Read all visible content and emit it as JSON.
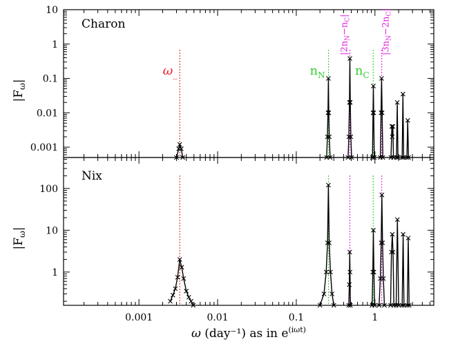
{
  "chart_data": [
    {
      "type": "line",
      "panel_label": "Charon",
      "ylabel": "|F_ω|",
      "xscale": "log",
      "yscale": "log",
      "xlim": [
        0.00011,
        5.6
      ],
      "ylim": [
        0.0005,
        10
      ],
      "ytick_values": [
        0.001,
        0.01,
        0.1,
        1,
        10
      ],
      "ytick_labels": [
        "0.001",
        "0.01",
        "0.1",
        "1",
        "10"
      ],
      "vlines": [
        {
          "x": 0.0033,
          "color": "#e8202a",
          "label": "ω_"
        },
        {
          "x": 0.257,
          "color": "#33cc33",
          "label": "n_N"
        },
        {
          "x": 0.95,
          "color": "#33cc33",
          "label": "n_C"
        },
        {
          "x": 0.48,
          "color": "#dd22dd",
          "label": "|2n_N − n_C|"
        },
        {
          "x": 1.22,
          "color": "#dd22dd",
          "label": "|3n_N − 2n_C|"
        }
      ],
      "series": [
        {
          "values": [
            [
              0.003,
              0.0005
            ],
            [
              0.0032,
              0.0009
            ],
            [
              0.0033,
              0.0012
            ],
            [
              0.00345,
              0.0009
            ],
            [
              0.0036,
              0.0005
            ]
          ]
        },
        {
          "values": [
            [
              0.243,
              0.0005
            ],
            [
              0.249,
              0.002
            ],
            [
              0.253,
              0.01
            ],
            [
              0.256,
              0.1
            ],
            [
              0.259,
              0.01
            ],
            [
              0.263,
              0.002
            ],
            [
              0.269,
              0.0005
            ]
          ]
        },
        {
          "values": [
            [
              0.455,
              0.0005
            ],
            [
              0.466,
              0.002
            ],
            [
              0.474,
              0.02
            ],
            [
              0.48,
              0.38
            ],
            [
              0.486,
              0.02
            ],
            [
              0.494,
              0.002
            ],
            [
              0.505,
              0.0005
            ]
          ]
        },
        {
          "values": [
            [
              0.93,
              0.0005
            ],
            [
              0.945,
              0.01
            ],
            [
              0.955,
              0.06
            ],
            [
              0.965,
              0.01
            ],
            [
              0.98,
              0.0005
            ]
          ]
        },
        {
          "values": [
            [
              1.17,
              0.0005
            ],
            [
              1.195,
              0.01
            ],
            [
              1.215,
              0.1
            ],
            [
              1.235,
              0.01
            ],
            [
              1.26,
              0.0005
            ]
          ]
        },
        {
          "values": [
            [
              1.6,
              0.0005
            ],
            [
              1.64,
              0.004
            ],
            [
              1.66,
              0.002
            ],
            [
              1.69,
              0.004
            ],
            [
              1.72,
              0.0005
            ]
          ]
        },
        {
          "values": [
            [
              1.88,
              0.0005
            ],
            [
              1.92,
              0.02
            ],
            [
              1.96,
              0.0005
            ]
          ]
        },
        {
          "values": [
            [
              2.22,
              0.0005
            ],
            [
              2.27,
              0.035
            ],
            [
              2.32,
              0.0005
            ]
          ]
        },
        {
          "values": [
            [
              2.55,
              0.0005
            ],
            [
              2.61,
              0.006
            ],
            [
              2.67,
              0.0005
            ]
          ]
        }
      ]
    },
    {
      "type": "line",
      "panel_label": "Nix",
      "ylabel": "|F_ω|",
      "xlabel": "ω (day⁻¹)   as in e^(iωt)",
      "xscale": "log",
      "yscale": "log",
      "xlim": [
        0.00011,
        5.6
      ],
      "ylim": [
        0.16,
        550
      ],
      "ytick_values": [
        1,
        10,
        100
      ],
      "ytick_labels": [
        "1",
        "10",
        "100"
      ],
      "xtick_values": [
        0.001,
        0.01,
        0.1,
        1
      ],
      "xtick_labels": [
        "0.001",
        "0.01",
        "0.1",
        "1"
      ],
      "vlines": [
        {
          "x": 0.0033,
          "color": "#e8202a"
        },
        {
          "x": 0.257,
          "color": "#33cc33"
        },
        {
          "x": 0.95,
          "color": "#33cc33"
        },
        {
          "x": 0.48,
          "color": "#dd22dd"
        },
        {
          "x": 1.22,
          "color": "#dd22dd"
        }
      ],
      "series": [
        {
          "values": [
            [
              0.0025,
              0.2
            ],
            [
              0.0027,
              0.28
            ],
            [
              0.0029,
              0.4
            ],
            [
              0.0031,
              0.75
            ],
            [
              0.0033,
              2.0
            ],
            [
              0.0035,
              1.3
            ],
            [
              0.0037,
              0.7
            ],
            [
              0.004,
              0.35
            ],
            [
              0.0043,
              0.25
            ],
            [
              0.0046,
              0.2
            ],
            [
              0.0049,
              0.16
            ]
          ]
        },
        {
          "values": [
            [
              0.2,
              0.16
            ],
            [
              0.225,
              0.3
            ],
            [
              0.24,
              1.0
            ],
            [
              0.25,
              5.0
            ],
            [
              0.256,
              120
            ],
            [
              0.262,
              5.0
            ],
            [
              0.272,
              1.0
            ],
            [
              0.285,
              0.3
            ],
            [
              0.3,
              0.16
            ]
          ]
        },
        {
          "values": [
            [
              0.465,
              0.16
            ],
            [
              0.472,
              0.5
            ],
            [
              0.478,
              3.0
            ],
            [
              0.482,
              1.0
            ],
            [
              0.488,
              0.16
            ]
          ]
        },
        {
          "values": [
            [
              0.92,
              0.16
            ],
            [
              0.94,
              1.0
            ],
            [
              0.955,
              10
            ],
            [
              0.97,
              1.0
            ],
            [
              0.99,
              0.16
            ]
          ]
        },
        {
          "values": [
            [
              1.13,
              0.16
            ],
            [
              1.17,
              0.7
            ],
            [
              1.2,
              5.0
            ],
            [
              1.225,
              70
            ],
            [
              1.25,
              5.0
            ],
            [
              1.28,
              0.7
            ],
            [
              1.32,
              0.16
            ]
          ]
        },
        {
          "values": [
            [
              1.58,
              0.16
            ],
            [
              1.62,
              3.0
            ],
            [
              1.66,
              8.0
            ],
            [
              1.7,
              3.0
            ],
            [
              1.74,
              0.16
            ]
          ]
        },
        {
          "values": [
            [
              1.86,
              0.16
            ],
            [
              1.93,
              18
            ],
            [
              2.0,
              0.16
            ]
          ]
        },
        {
          "values": [
            [
              2.22,
              0.16
            ],
            [
              2.28,
              8.0
            ],
            [
              2.34,
              0.16
            ]
          ]
        },
        {
          "values": [
            [
              2.58,
              0.16
            ],
            [
              2.65,
              6.5
            ],
            [
              2.72,
              0.16
            ]
          ]
        }
      ]
    }
  ]
}
